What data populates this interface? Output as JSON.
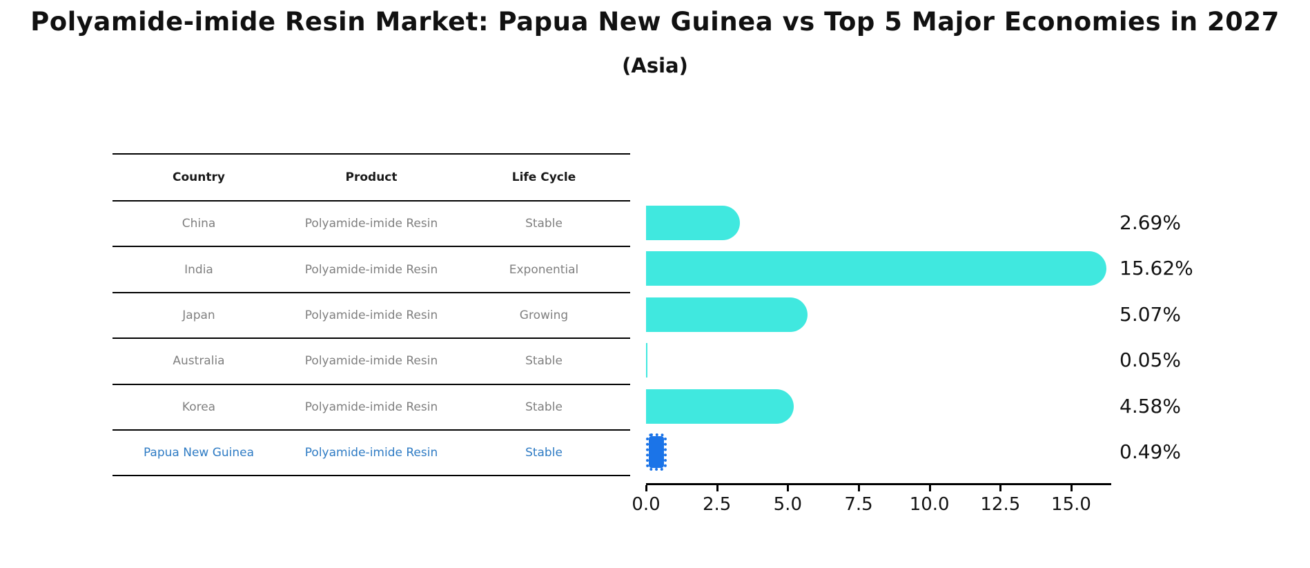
{
  "title": "Polyamide-imide Resin Market: Papua New Guinea vs Top 5 Major Economies in 2027",
  "subtitle": "(Asia)",
  "table": {
    "headers": [
      "Country",
      "Product",
      "Life Cycle"
    ],
    "rows": [
      {
        "country": "China",
        "product": "Polyamide-imide Resin",
        "life_cycle": "Stable"
      },
      {
        "country": "India",
        "product": "Polyamide-imide Resin",
        "life_cycle": "Exponential"
      },
      {
        "country": "Japan",
        "product": "Polyamide-imide Resin",
        "life_cycle": "Growing"
      },
      {
        "country": "Australia",
        "product": "Polyamide-imide Resin",
        "life_cycle": "Stable"
      },
      {
        "country": "Korea",
        "product": "Polyamide-imide Resin",
        "life_cycle": "Stable"
      },
      {
        "country": "Papua New Guinea",
        "product": "Polyamide-imide Resin",
        "life_cycle": "Stable"
      }
    ]
  },
  "chart_data": {
    "type": "bar",
    "orientation": "horizontal",
    "categories": [
      "China",
      "India",
      "Japan",
      "Australia",
      "Korea",
      "Papua New Guinea"
    ],
    "values": [
      2.69,
      15.62,
      5.07,
      0.05,
      4.58,
      0.49
    ],
    "value_labels": [
      "2.69%",
      "15.62%",
      "5.07%",
      "0.05%",
      "4.58%",
      "0.49%"
    ],
    "x_ticks": [
      0.0,
      2.5,
      5.0,
      7.5,
      10.0,
      12.5,
      15.0
    ],
    "x_tick_labels": [
      "0.0",
      "2.5",
      "5.0",
      "7.5",
      "10.0",
      "12.5",
      "15.0"
    ],
    "xlim": [
      0,
      16.4
    ],
    "xlabel": "",
    "ylabel": "",
    "grid": false,
    "legend": false,
    "bar_color": "#40e8df",
    "highlight_color": "#1b74e8",
    "highlight_index": 5
  },
  "colors": {
    "bar": "#40e8df",
    "highlight_bar": "#1b74e8",
    "highlight_text": "#2e7bc4",
    "cell_text": "#7f7f7f",
    "header_text": "#1a1a1a",
    "axis": "#000000"
  }
}
